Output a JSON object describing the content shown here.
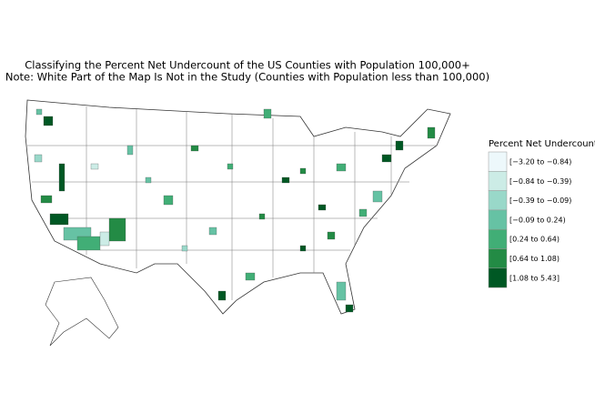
{
  "title": [
    "Classifying the Percent Net Undercount of the US Counties with Population 100,000+",
    "Note: White Part of the Map Is Not in the Study (Counties with Population less than 100,000)"
  ],
  "legend": {
    "title": "Percent Net Undercount",
    "items": [
      {
        "label": "[−3.20 to −0.84)",
        "color": "#edf8fb"
      },
      {
        "label": "[−0.84 to −0.39)",
        "color": "#ccece6"
      },
      {
        "label": "[−0.39 to −0.09)",
        "color": "#99d8c9"
      },
      {
        "label": "[−0.09 to 0.24)",
        "color": "#66c2a4"
      },
      {
        "label": "[0.24 to 0.64)",
        "color": "#41ae76"
      },
      {
        "label": "[0.64 to 1.08)",
        "color": "#238b45"
      },
      {
        "label": "[1.08 to 5.43]",
        "color": "#005824"
      }
    ]
  }
}
